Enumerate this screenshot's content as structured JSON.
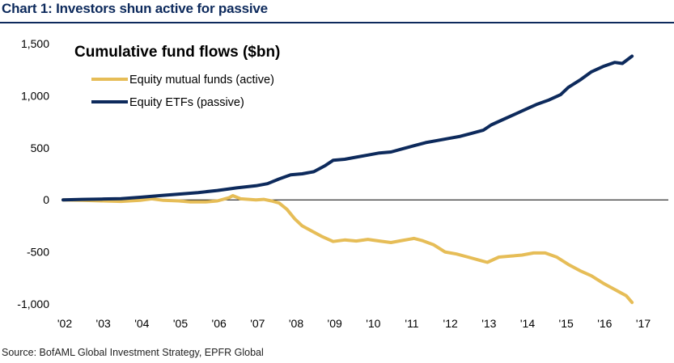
{
  "title": "Chart 1: Investors shun active for passive",
  "source": "Source: BofAML Global Investment Strategy, EPFR Global",
  "chart_data": {
    "type": "line",
    "title": "Cumulative fund flows ($bn)",
    "xlabel": "",
    "ylabel": "",
    "x_ticks": [
      "'02",
      "'03",
      "'04",
      "'05",
      "'06",
      "'07",
      "'08",
      "'09",
      "'10",
      "'11",
      "'12",
      "'13",
      "'14",
      "'15",
      "'16",
      "'17"
    ],
    "y_ticks": [
      "1,500",
      "1,000",
      "500",
      "0",
      "-500",
      "-1,000"
    ],
    "y_tick_values": [
      1500,
      1000,
      500,
      0,
      -500,
      -1000
    ],
    "xlim": [
      2002,
      2017
    ],
    "ylim": [
      -1000,
      1500
    ],
    "grid": false,
    "legend_position": "top-left",
    "series": [
      {
        "name": "Equity mutual funds (active)",
        "color": "#e6bd57",
        "points": [
          [
            2002.0,
            0
          ],
          [
            2002.5,
            -5
          ],
          [
            2003.0,
            -10
          ],
          [
            2003.5,
            -15
          ],
          [
            2004.0,
            -5
          ],
          [
            2004.3,
            10
          ],
          [
            2004.6,
            -5
          ],
          [
            2005.0,
            -10
          ],
          [
            2005.3,
            -20
          ],
          [
            2005.7,
            -20
          ],
          [
            2006.0,
            -10
          ],
          [
            2006.3,
            20
          ],
          [
            2006.4,
            40
          ],
          [
            2006.6,
            10
          ],
          [
            2007.0,
            0
          ],
          [
            2007.2,
            5
          ],
          [
            2007.4,
            -10
          ],
          [
            2007.6,
            -30
          ],
          [
            2007.8,
            -90
          ],
          [
            2008.0,
            -180
          ],
          [
            2008.2,
            -250
          ],
          [
            2008.5,
            -310
          ],
          [
            2008.7,
            -350
          ],
          [
            2009.0,
            -400
          ],
          [
            2009.3,
            -385
          ],
          [
            2009.6,
            -395
          ],
          [
            2009.9,
            -380
          ],
          [
            2010.2,
            -395
          ],
          [
            2010.5,
            -410
          ],
          [
            2010.8,
            -390
          ],
          [
            2011.1,
            -370
          ],
          [
            2011.3,
            -390
          ],
          [
            2011.6,
            -430
          ],
          [
            2011.9,
            -500
          ],
          [
            2012.2,
            -520
          ],
          [
            2012.5,
            -550
          ],
          [
            2012.8,
            -580
          ],
          [
            2013.0,
            -600
          ],
          [
            2013.3,
            -550
          ],
          [
            2013.6,
            -540
          ],
          [
            2013.9,
            -530
          ],
          [
            2014.2,
            -510
          ],
          [
            2014.5,
            -510
          ],
          [
            2014.8,
            -550
          ],
          [
            2015.1,
            -620
          ],
          [
            2015.4,
            -680
          ],
          [
            2015.7,
            -730
          ],
          [
            2016.0,
            -800
          ],
          [
            2016.3,
            -860
          ],
          [
            2016.6,
            -920
          ],
          [
            2016.75,
            -985
          ]
        ]
      },
      {
        "name": "Equity ETFs (passive)",
        "color": "#0d2a5c",
        "points": [
          [
            2002.0,
            0
          ],
          [
            2002.5,
            5
          ],
          [
            2003.0,
            8
          ],
          [
            2003.5,
            12
          ],
          [
            2004.0,
            25
          ],
          [
            2004.5,
            40
          ],
          [
            2005.0,
            55
          ],
          [
            2005.5,
            70
          ],
          [
            2006.0,
            90
          ],
          [
            2006.5,
            115
          ],
          [
            2007.0,
            135
          ],
          [
            2007.3,
            155
          ],
          [
            2007.6,
            200
          ],
          [
            2007.9,
            240
          ],
          [
            2008.2,
            250
          ],
          [
            2008.5,
            270
          ],
          [
            2008.8,
            330
          ],
          [
            2009.0,
            380
          ],
          [
            2009.3,
            390
          ],
          [
            2009.6,
            410
          ],
          [
            2009.9,
            430
          ],
          [
            2010.2,
            450
          ],
          [
            2010.5,
            460
          ],
          [
            2010.8,
            490
          ],
          [
            2011.1,
            520
          ],
          [
            2011.4,
            550
          ],
          [
            2011.7,
            570
          ],
          [
            2012.0,
            590
          ],
          [
            2012.3,
            610
          ],
          [
            2012.6,
            640
          ],
          [
            2012.9,
            670
          ],
          [
            2013.1,
            720
          ],
          [
            2013.4,
            770
          ],
          [
            2013.7,
            820
          ],
          [
            2014.0,
            870
          ],
          [
            2014.3,
            920
          ],
          [
            2014.6,
            960
          ],
          [
            2014.9,
            1010
          ],
          [
            2015.1,
            1080
          ],
          [
            2015.4,
            1150
          ],
          [
            2015.7,
            1230
          ],
          [
            2016.0,
            1280
          ],
          [
            2016.3,
            1320
          ],
          [
            2016.5,
            1310
          ],
          [
            2016.75,
            1380
          ]
        ]
      }
    ]
  }
}
